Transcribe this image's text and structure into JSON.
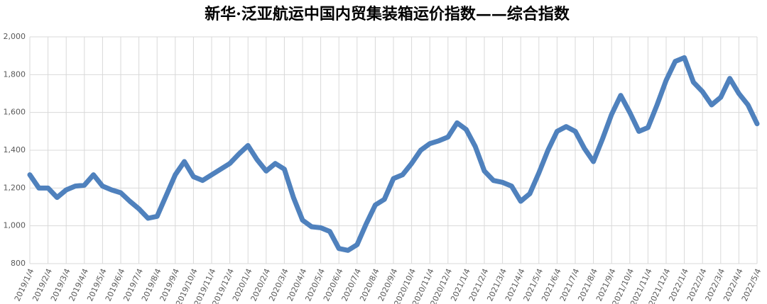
{
  "chart_data": {
    "type": "line",
    "title": "新华·泛亚航运中国内贸集装箱运价指数——综合指数",
    "categories": [
      "2019/1/4",
      null,
      "2019/2/4",
      null,
      "2019/3/4",
      null,
      "2019/4/4",
      null,
      "2019/5/4",
      null,
      "2019/6/4",
      null,
      "2019/7/4",
      null,
      "2019/8/4",
      null,
      "2019/9/4",
      null,
      "2019/10/4",
      null,
      "2019/11/4",
      null,
      "2019/12/4",
      null,
      "2020/1/4",
      null,
      "2020/2/4",
      null,
      "2020/3/4",
      null,
      "2020/4/4",
      null,
      "2020/5/4",
      null,
      "2020/6/4",
      null,
      "2020/7/4",
      null,
      "2020/8/4",
      null,
      "2020/9/4",
      null,
      "2020/10/4",
      null,
      "2020/11/4",
      null,
      "2020/12/4",
      null,
      "2021/1/4",
      null,
      "2021/2/4",
      null,
      "2021/3/4",
      null,
      "2021/4/4",
      null,
      "2021/5/4",
      null,
      "2021/6/4",
      null,
      "2021/7/4",
      null,
      "2021/8/4",
      null,
      "2021/9/4",
      null,
      "2021/10/4",
      null,
      "2021/11/4",
      null,
      "2021/12/4",
      null,
      "2022/1/4",
      null,
      "2022/2/4",
      null,
      "2022/3/4",
      null,
      "2022/4/4",
      null,
      "2022/5/4"
    ],
    "values": [
      1270,
      1200,
      1200,
      1150,
      1190,
      1210,
      1215,
      1270,
      1210,
      1190,
      1175,
      1130,
      1090,
      1040,
      1050,
      1160,
      1270,
      1340,
      1260,
      1240,
      1270,
      1300,
      1330,
      1380,
      1425,
      1350,
      1290,
      1330,
      1300,
      1150,
      1030,
      995,
      990,
      970,
      880,
      870,
      900,
      1010,
      1110,
      1140,
      1250,
      1270,
      1330,
      1400,
      1435,
      1450,
      1470,
      1545,
      1510,
      1420,
      1290,
      1240,
      1230,
      1210,
      1130,
      1170,
      1280,
      1400,
      1500,
      1525,
      1500,
      1410,
      1340,
      1460,
      1590,
      1690,
      1600,
      1500,
      1520,
      1640,
      1770,
      1870,
      1890,
      1760,
      1710,
      1640,
      1680,
      1780,
      1700,
      1640,
      1540
    ],
    "color": "#4f81bd",
    "ylim": [
      800,
      2000
    ],
    "yticks": [
      800,
      {
        "value": 1000,
        "label": "1,000"
      },
      {
        "value": 1200,
        "label": "1,200"
      },
      {
        "value": 1400,
        "label": "1,400"
      },
      {
        "value": 1600,
        "label": "1,600"
      },
      {
        "value": 1800,
        "label": "1,800"
      },
      {
        "value": 2000,
        "label": "2,000"
      }
    ],
    "grid": true
  }
}
